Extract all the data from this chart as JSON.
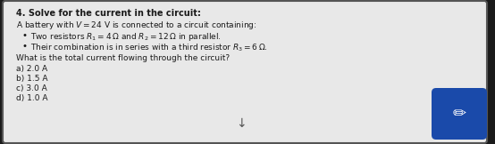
{
  "title": "4. Solve for the current in the circuit:",
  "intro": "A battery with $V = 24$ V is connected to a circuit containing:",
  "bullet1": "Two resistors $R_1 = 4\\,\\Omega$ and $R_2 = 12\\,\\Omega$ in parallel.",
  "bullet2": "Their combination is in series with a third resistor $R_3 = 6\\,\\Omega$.",
  "question": "What is the total current flowing through the circuit?",
  "options": [
    "a) 2.0 A",
    "b) 1.5 A",
    "c) 3.0 A",
    "d) 1.0 A"
  ],
  "outer_bg": "#1a1a1a",
  "card_bg": "#e8e8e8",
  "text_color": "#1a1a1a",
  "btn_color": "#1a4aaa",
  "arrow_color": "#555555",
  "card_border": "#555555",
  "title_fontsize": 7.0,
  "body_fontsize": 6.5,
  "option_fontsize": 6.5
}
